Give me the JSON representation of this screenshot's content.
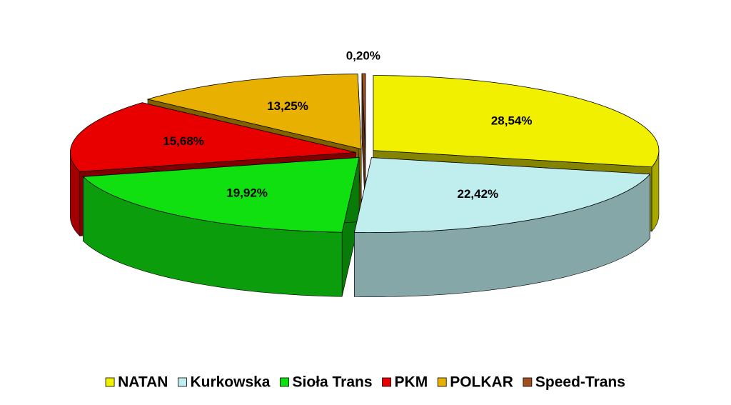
{
  "chart_data": {
    "type": "pie3d",
    "categories": [
      "NATAN",
      "Kurkowska",
      "Sioła Trans",
      "PKM",
      "POLKAR",
      "Speed-Trans"
    ],
    "values": [
      28.54,
      22.42,
      19.92,
      15.68,
      13.25,
      0.2
    ],
    "value_labels": [
      "28,54%",
      "22,42%",
      "19,92%",
      "15,68%",
      "13,25%",
      "0,20%"
    ],
    "colors": [
      "#f0f000",
      "#c0eeee",
      "#10e010",
      "#e80000",
      "#e8b000",
      "#a0501e"
    ],
    "legend": "bottom"
  }
}
